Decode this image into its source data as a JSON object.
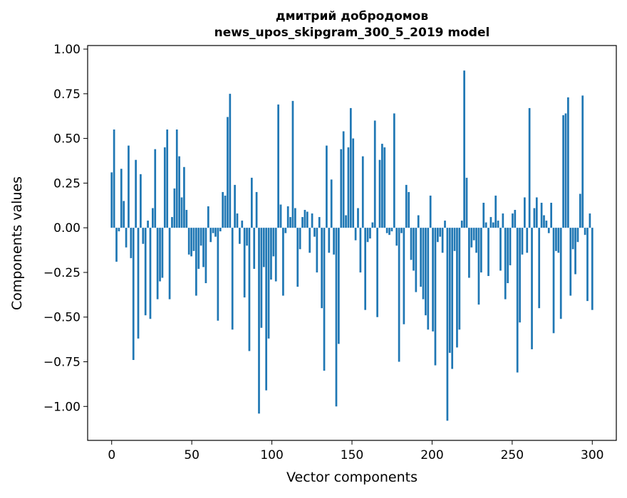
{
  "chart_data": {
    "type": "bar",
    "title": "дмитрий добродомов\nnews_upos_skipgram_300_5_2019 model",
    "title_lines": [
      "дмитрий добродомов",
      "news_upos_skipgram_300_5_2019 model"
    ],
    "xlabel": "Vector components",
    "ylabel": "Components values",
    "xlim": [
      -15,
      315
    ],
    "ylim": [
      -1.19,
      1.02
    ],
    "x_ticks": [
      0,
      50,
      100,
      150,
      200,
      250,
      300
    ],
    "x_tick_labels": [
      "0",
      "50",
      "100",
      "150",
      "200",
      "250",
      "300"
    ],
    "y_ticks": [
      1.0,
      0.75,
      0.5,
      0.25,
      0.0,
      -0.25,
      -0.5,
      -0.75,
      -1.0
    ],
    "y_tick_labels": [
      "1.00",
      "0.75",
      "0.50",
      "0.25",
      "0.00",
      "−0.25",
      "−0.50",
      "−0.75",
      "−1.00"
    ],
    "grid": false,
    "bar_color": "#1f77b4",
    "series": [
      {
        "values": [
          0.31,
          0.55,
          -0.19,
          -0.02,
          0.33,
          0.15,
          -0.11,
          0.46,
          -0.17,
          -0.74,
          0.38,
          -0.62,
          0.3,
          -0.09,
          -0.49,
          0.04,
          -0.51,
          0.11,
          0.44,
          -0.4,
          -0.3,
          -0.28,
          0.45,
          0.55,
          -0.4,
          0.06,
          0.22,
          0.55,
          0.4,
          0.17,
          0.34,
          0.1,
          -0.15,
          -0.16,
          -0.13,
          -0.38,
          -0.23,
          -0.1,
          -0.22,
          -0.31,
          0.12,
          -0.08,
          -0.03,
          -0.05,
          -0.52,
          -0.02,
          0.2,
          0.18,
          0.62,
          0.75,
          -0.57,
          0.24,
          0.08,
          -0.09,
          0.04,
          -0.39,
          -0.1,
          -0.69,
          0.28,
          -0.23,
          0.2,
          -1.04,
          -0.56,
          -0.22,
          -0.91,
          -0.62,
          -0.29,
          -0.16,
          -0.3,
          0.69,
          0.13,
          -0.38,
          -0.03,
          0.12,
          0.06,
          0.71,
          0.11,
          -0.33,
          -0.12,
          0.06,
          0.1,
          0.09,
          -0.14,
          0.08,
          -0.05,
          -0.25,
          0.06,
          -0.45,
          -0.8,
          0.46,
          -0.14,
          0.27,
          -0.15,
          -1.0,
          -0.65,
          0.44,
          0.54,
          0.07,
          0.45,
          0.67,
          0.5,
          -0.07,
          0.11,
          -0.25,
          0.4,
          -0.46,
          -0.08,
          -0.06,
          0.03,
          0.6,
          -0.5,
          0.38,
          0.47,
          0.45,
          -0.03,
          -0.04,
          -0.02,
          0.64,
          -0.1,
          -0.75,
          -0.03,
          -0.54,
          0.24,
          0.2,
          -0.18,
          -0.24,
          -0.36,
          0.07,
          -0.33,
          -0.4,
          -0.49,
          -0.57,
          0.18,
          -0.58,
          -0.77,
          -0.08,
          -0.05,
          -0.14,
          0.04,
          -1.08,
          -0.7,
          -0.79,
          -0.13,
          -0.67,
          -0.57,
          0.04,
          0.88,
          0.28,
          -0.28,
          -0.11,
          -0.07,
          -0.14,
          -0.43,
          -0.25,
          0.14,
          0.03,
          -0.27,
          0.06,
          0.03,
          0.18,
          0.04,
          -0.24,
          0.08,
          -0.4,
          -0.31,
          -0.21,
          0.08,
          0.1,
          -0.81,
          -0.53,
          -0.15,
          0.17,
          -0.14,
          0.67,
          -0.68,
          0.11,
          0.17,
          -0.45,
          0.14,
          0.07,
          0.04,
          -0.03,
          0.14,
          -0.59,
          -0.13,
          -0.14,
          -0.51,
          0.63,
          0.64,
          0.73,
          -0.38,
          -0.12,
          -0.26,
          -0.08,
          0.19,
          0.74,
          -0.04,
          -0.41,
          0.08,
          -0.46
        ]
      }
    ]
  }
}
